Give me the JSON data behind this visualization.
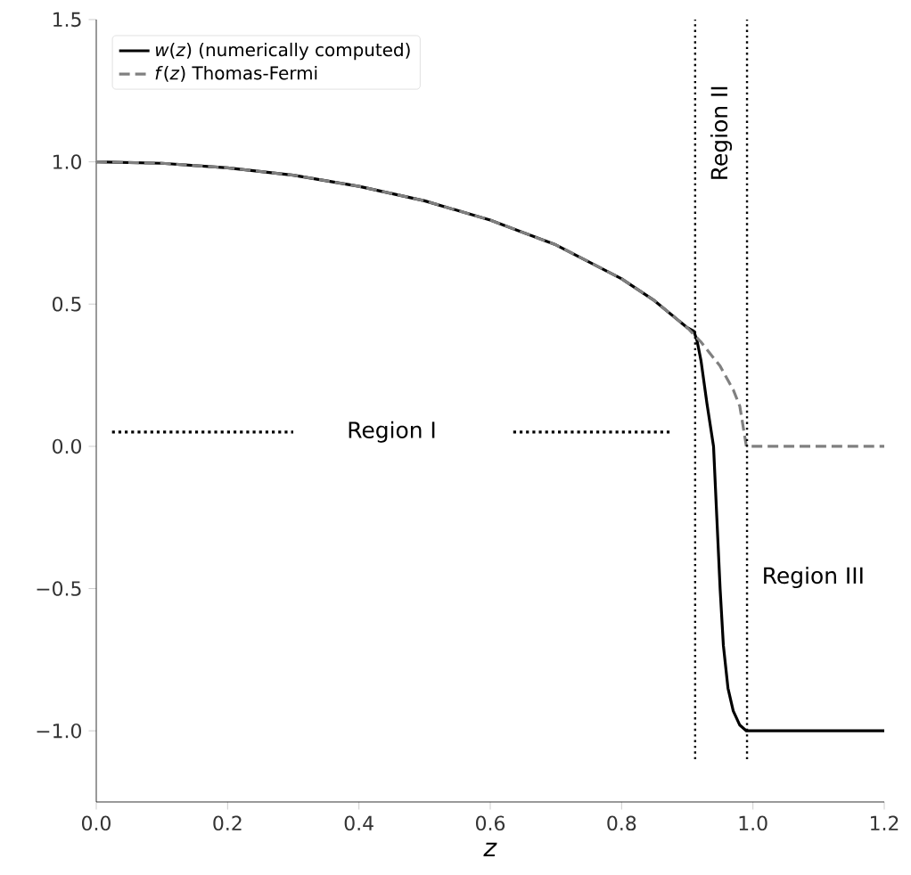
{
  "chart_data": {
    "type": "line",
    "xlabel": "*z*",
    "series": [
      {
        "name": "*w*(*z*) (numerically computed)",
        "color": "#000000",
        "line_style": "solid",
        "x": [
          0,
          0.1,
          0.2,
          0.3,
          0.4,
          0.5,
          0.6,
          0.7,
          0.8,
          0.85,
          0.9,
          0.91,
          0.915,
          0.921,
          0.93,
          0.94,
          0.945,
          0.95,
          0.955,
          0.962,
          0.97,
          0.98,
          0.99,
          1.0,
          1.2
        ],
        "values": [
          1,
          0.995,
          0.979,
          0.953,
          0.914,
          0.863,
          0.795,
          0.708,
          0.589,
          0.512,
          0.417,
          0.405,
          0.37,
          0.3,
          0.15,
          0,
          -0.25,
          -0.5,
          -0.7,
          -0.85,
          -0.93,
          -0.98,
          -1.0,
          -1.0,
          -1.0
        ]
      },
      {
        "name": "*f*(*z*) Thomas-Fermi",
        "color": "#808080",
        "line_style": "dashed",
        "x": [
          0,
          0.1,
          0.2,
          0.3,
          0.4,
          0.5,
          0.6,
          0.7,
          0.8,
          0.85,
          0.9,
          0.92,
          0.95,
          0.97,
          0.98,
          0.99,
          1.0,
          1.2
        ],
        "values": [
          1,
          0.995,
          0.979,
          0.953,
          0.914,
          0.863,
          0.795,
          0.708,
          0.589,
          0.512,
          0.417,
          0.369,
          0.282,
          0.199,
          0.141,
          0,
          0,
          0
        ]
      },
      {
        "color": "#000000",
        "line_style": "dotted",
        "x": [
          0.024,
          0.3,
          0.46,
          0.635,
          0.877
        ],
        "values": [
          0.05,
          0.05,
          null,
          0.05,
          0.05
        ]
      }
    ],
    "xlim": [
      0,
      1.2
    ],
    "ylim": [
      -1.25,
      1.5
    ],
    "xticks": [
      {
        "value": 0,
        "label": "0.0"
      },
      {
        "value": 0.2,
        "label": "0.2"
      },
      {
        "value": 0.4,
        "label": "0.4"
      },
      {
        "value": 0.6,
        "label": "0.6"
      },
      {
        "value": 0.8,
        "label": "0.8"
      },
      {
        "value": 1.0,
        "label": "1.0"
      },
      {
        "value": 1.2,
        "label": "1.2"
      }
    ],
    "yticks": [
      {
        "value": -1.0,
        "label": "−1.0"
      },
      {
        "value": -0.5,
        "label": "−0.5"
      },
      {
        "value": 0.0,
        "label": "0.0"
      },
      {
        "value": 0.5,
        "label": "0.5"
      },
      {
        "value": 1.0,
        "label": "1.0"
      },
      {
        "value": 1.5,
        "label": "1.5"
      }
    ],
    "ref_lines": [
      {
        "axis": "x",
        "value": 0.912,
        "color": "#000000",
        "line_style": "dotted"
      },
      {
        "axis": "x",
        "value": 0.991,
        "color": "#000000",
        "line_style": "dotted"
      }
    ],
    "annotations": [
      "Region I",
      "Region II",
      "Region III"
    ],
    "legend": "top left",
    "grid": false
  }
}
